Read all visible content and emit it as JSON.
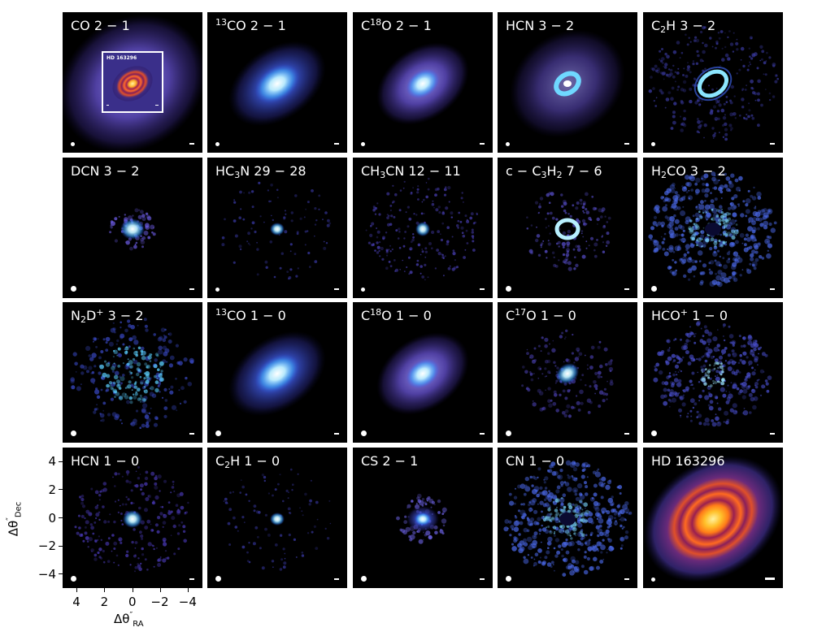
{
  "panels": [
    {
      "row": 0,
      "col": 0,
      "label_html": "CO 2 − 1",
      "type": "co21",
      "inset": true
    },
    {
      "row": 0,
      "col": 1,
      "label_html": "<sup>13</sup>CO 2 − 1",
      "type": "cloud_bright"
    },
    {
      "row": 0,
      "col": 2,
      "label_html": "C<sup>18</sup>O 2 − 1",
      "type": "cloud_mid"
    },
    {
      "row": 0,
      "col": 3,
      "label_html": "HCN 3 − 2",
      "type": "ring_faint"
    },
    {
      "row": 0,
      "col": 4,
      "label_html": "C<sub>2</sub>H 3 − 2",
      "type": "ring_sharp"
    },
    {
      "row": 1,
      "col": 0,
      "label_html": "DCN 3 − 2",
      "type": "compact_small"
    },
    {
      "row": 1,
      "col": 1,
      "label_html": "HC<sub>3</sub>N 29 − 28",
      "type": "compact_tiny"
    },
    {
      "row": 1,
      "col": 2,
      "label_html": "CH<sub>3</sub>CN 12 − 11",
      "type": "compact_noise"
    },
    {
      "row": 1,
      "col": 3,
      "label_html": "c − C<sub>3</sub>H<sub>2</sub> 7 − 6",
      "type": "compact_ring"
    },
    {
      "row": 1,
      "col": 4,
      "label_html": "H<sub>2</sub>CO 3 − 2",
      "type": "patchy_big"
    },
    {
      "row": 2,
      "col": 0,
      "label_html": "N<sub>2</sub>D<sup>+</sup> 3 − 2",
      "type": "patchy_ring"
    },
    {
      "row": 2,
      "col": 1,
      "label_html": "<sup>13</sup>CO 1 − 0",
      "type": "cloud_bright"
    },
    {
      "row": 2,
      "col": 2,
      "label_html": "C<sup>18</sup>O 1 − 0",
      "type": "cloud_mid"
    },
    {
      "row": 2,
      "col": 3,
      "label_html": "C<sup>17</sup>O 1 − 0",
      "type": "compact_blob"
    },
    {
      "row": 2,
      "col": 4,
      "label_html": "HCO<sup>+</sup> 1 − 0",
      "type": "patchy_mid"
    },
    {
      "row": 3,
      "col": 0,
      "label_html": "HCN 1 − 0",
      "type": "compact_noise2"
    },
    {
      "row": 3,
      "col": 1,
      "label_html": "C<sub>2</sub>H 1 − 0",
      "type": "compact_tiny"
    },
    {
      "row": 3,
      "col": 2,
      "label_html": "CS 2 − 1",
      "type": "compact_blob2"
    },
    {
      "row": 3,
      "col": 3,
      "label_html": "CN 1 − 0",
      "type": "patchy_big"
    },
    {
      "row": 3,
      "col": 4,
      "label_html": "HD 163296",
      "type": "continuum"
    }
  ],
  "inset_label": "HD 163296",
  "axes": {
    "y_ticks": [
      "4",
      "2",
      "0",
      "−2",
      "−4"
    ],
    "x_ticks": [
      "4",
      "2",
      "0",
      "−2",
      "−4"
    ],
    "y_title_html": "Δθ<sup>″</sup><sub>Dec</sub>",
    "x_title_html": "Δθ<sup>″</sup><sub>RA</sub>"
  },
  "colors": {
    "panel_bg": "#000000",
    "emission_blue": "#3a6cff",
    "emission_core": "#e8f6ff",
    "continuum_orange": "#ff8a1f"
  }
}
